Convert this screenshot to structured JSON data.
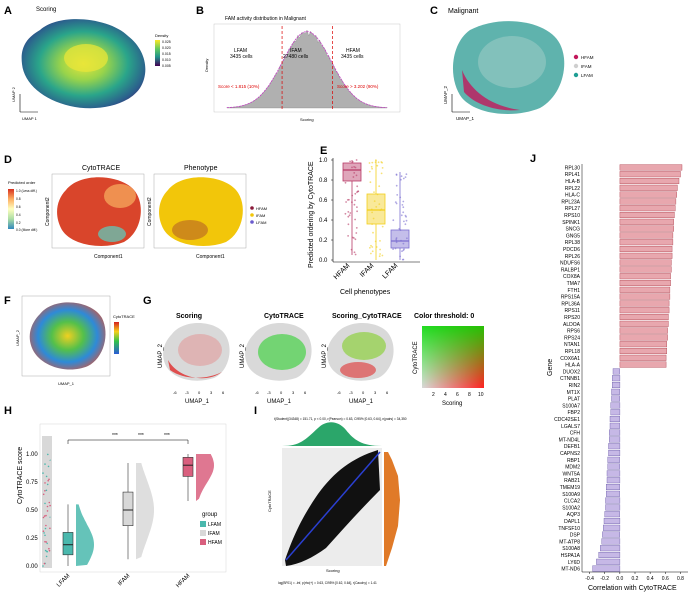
{
  "figure": {
    "panels": {
      "A": {
        "letter": "A",
        "title": "Scoring",
        "xlabel": "UMAP 1",
        "ylabel": "UMAP 2",
        "legend_title": "Density",
        "legend_values": [
          "0.025",
          "0.020",
          "0.015",
          "0.010",
          "0.005"
        ]
      },
      "B": {
        "letter": "B",
        "title": "FAM activity distribution in Malignant",
        "xlabel": "Scoring",
        "ylabel": "Density",
        "groups": [
          {
            "name": "LFAM",
            "count": "3435 cells"
          },
          {
            "name": "IFAM",
            "count": "27480 cells"
          },
          {
            "name": "HFAM",
            "count": "3435 cells"
          }
        ],
        "thresholds": [
          "Score < 1.815 (10%)",
          "Score > 3.202 (90%)"
        ]
      },
      "C": {
        "letter": "C",
        "title": "Malignant",
        "xlabel": "UMAP_1",
        "ylabel": "UMAP_2",
        "legend": [
          {
            "name": "HFAM",
            "color": "#c2185b"
          },
          {
            "name": "IFAM",
            "color": "#cfcfcf"
          },
          {
            "name": "LFAM",
            "color": "#1f9e94"
          }
        ]
      },
      "D": {
        "letter": "D",
        "left_title": "CytoTRACE",
        "right_title": "Phenotype",
        "xlabel": "Component1",
        "ylabel": "Component2",
        "cb_title": "Predicted order",
        "cb_values": [
          "1.0 (Less diff.)",
          "0.8",
          "0.6",
          "0.4",
          "0.2",
          "0.0 (More diff.)"
        ],
        "legend": [
          {
            "name": "HFAM",
            "color": "#8b1a3a"
          },
          {
            "name": "IFAM",
            "color": "#f2c60a"
          },
          {
            "name": "LFAM",
            "color": "#6a5acd"
          }
        ]
      },
      "E": {
        "letter": "E",
        "ylabel": "Predicted ordering by CytoTRACE",
        "xlabel": "Cell phenotypes",
        "categories": [
          "HFAM",
          "IFAM",
          "LFAM"
        ],
        "yticks": [
          "0.0",
          "0.2",
          "0.4",
          "0.6",
          "0.8",
          "1.0"
        ]
      },
      "F": {
        "letter": "F",
        "legend_title": "CytoTRACE",
        "xlabel": "UMAP_1",
        "ylabel": "UMAP_2"
      },
      "G": {
        "letter": "G",
        "titles": [
          "Scoring",
          "CytoTRACE",
          "Scoring_CytoTRACE",
          "Color threshold: 0"
        ],
        "xlabel": "UMAP_1",
        "ylabel": "UMAP_2",
        "xticks": [
          "-6",
          "-3",
          "0",
          "3",
          "6"
        ],
        "grid_xlabel": "Scoring",
        "grid_ylabel": "CytoTRACE",
        "grid_ticks": [
          "2",
          "4",
          "6",
          "8",
          "10"
        ]
      },
      "H": {
        "letter": "H",
        "ylabel": "CytoTRACE score",
        "categories": [
          "LFAM",
          "IFAM",
          "HFAM"
        ],
        "yticks": [
          "0.00",
          "0.25",
          "0.50",
          "0.75",
          "1.00"
        ],
        "sig": [
          "***",
          "***",
          "***"
        ],
        "legend_title": "group",
        "legend": [
          {
            "name": "LFAM",
            "color": "#4ab8ad"
          },
          {
            "name": "IFAM",
            "color": "#d8d8d8"
          },
          {
            "name": "HFAM",
            "color": "#d95f7e"
          }
        ]
      },
      "I": {
        "letter": "I",
        "xlabel": "Scoring",
        "ylabel": "CytoTRACE",
        "stat_line": "t(Student)(34348) = 151.71, p < 0.00, r(Pearson) = 0.63, CI95% [0.63, 0.64], n(pairs) = 34,350",
        "bottom_line": "log(BF01) = -Inf, p(rho|+) = 0.63, CI95% [0.62, 0.64], r(Cauchy) = 1.41"
      },
      "J": {
        "letter": "J",
        "ylabel": "Gene",
        "xlabel": "Correlation with CytoTRACE"
      }
    }
  },
  "chart_data": [
    {
      "type": "bar",
      "panel": "J",
      "orientation": "horizontal",
      "xlim": [
        -0.5,
        0.9
      ],
      "xticks": [
        -0.4,
        -0.2,
        0.0,
        0.2,
        0.4,
        0.6,
        0.8
      ],
      "categories": [
        "RPL30",
        "RPL41",
        "HLA-B",
        "RPL22",
        "HLA-C",
        "RPL23A",
        "RPL27",
        "RPS10",
        "SPINK1",
        "SNCG",
        "GNG5",
        "RPL38",
        "PDCD6",
        "RPL26",
        "NDUFS6",
        "RALBP1",
        "COX8A",
        "TMA7",
        "FTH1",
        "RPS15A",
        "RPL36A",
        "RPS11",
        "RPS20",
        "ALDOA",
        "RPS6",
        "RPS24",
        "NTAN1",
        "RPL18",
        "COX6A1",
        "HLA-A",
        "DUOX2",
        "CTNNB1",
        "RIN2",
        "MT1X",
        "PLAT",
        "S100A7",
        "FBP2",
        "CDC42SE1",
        "LGALS7",
        "CFH",
        "MT-ND4L",
        "DEFB1",
        "CAPNS2",
        "RBP1",
        "MDM2",
        "WNT5A",
        "RAB21",
        "TMEM19",
        "S100A9",
        "CLCA2",
        "S100A2",
        "AQP3",
        "DAPL1",
        "TNFSF10",
        "DSP",
        "MT-ATP8",
        "S100A8",
        "HSPA1A",
        "LY6D",
        "MT-ND6"
      ],
      "values": [
        0.82,
        0.8,
        0.78,
        0.76,
        0.75,
        0.74,
        0.73,
        0.72,
        0.71,
        0.71,
        0.7,
        0.7,
        0.69,
        0.69,
        0.68,
        0.68,
        0.67,
        0.67,
        0.66,
        0.66,
        0.65,
        0.65,
        0.64,
        0.64,
        0.63,
        0.63,
        0.62,
        0.62,
        0.61,
        0.61,
        -0.09,
        -0.1,
        -0.1,
        -0.11,
        -0.11,
        -0.12,
        -0.12,
        -0.13,
        -0.13,
        -0.14,
        -0.14,
        -0.15,
        -0.15,
        -0.16,
        -0.16,
        -0.17,
        -0.17,
        -0.18,
        -0.18,
        -0.19,
        -0.19,
        -0.2,
        -0.21,
        -0.22,
        -0.23,
        -0.24,
        -0.26,
        -0.28,
        -0.31,
        -0.36
      ]
    },
    {
      "type": "box",
      "panel": "E",
      "categories": [
        "HFAM",
        "IFAM",
        "LFAM"
      ],
      "colors": [
        "#b83a66",
        "#f2cf1c",
        "#7c6fd0"
      ],
      "stats": [
        {
          "q1": 0.79,
          "median": 0.9,
          "q3": 0.97,
          "lo": 0.05,
          "hi": 1.0
        },
        {
          "q1": 0.36,
          "median": 0.5,
          "q3": 0.66,
          "lo": 0.0,
          "hi": 1.0
        },
        {
          "q1": 0.12,
          "median": 0.19,
          "q3": 0.3,
          "lo": 0.0,
          "hi": 0.88
        }
      ]
    },
    {
      "type": "box",
      "panel": "H",
      "categories": [
        "LFAM",
        "IFAM",
        "HFAM"
      ],
      "stats": [
        {
          "q1": 0.1,
          "median": 0.19,
          "q3": 0.3,
          "lo": 0.0,
          "hi": 0.55
        },
        {
          "q1": 0.36,
          "median": 0.5,
          "q3": 0.66,
          "lo": 0.06,
          "hi": 0.92
        },
        {
          "q1": 0.8,
          "median": 0.9,
          "q3": 0.97,
          "lo": 0.58,
          "hi": 1.0
        }
      ]
    },
    {
      "type": "density",
      "panel": "B",
      "xlim": [
        0,
        5
      ],
      "lfam_cut": 1.815,
      "hfam_cut": 3.202
    }
  ]
}
